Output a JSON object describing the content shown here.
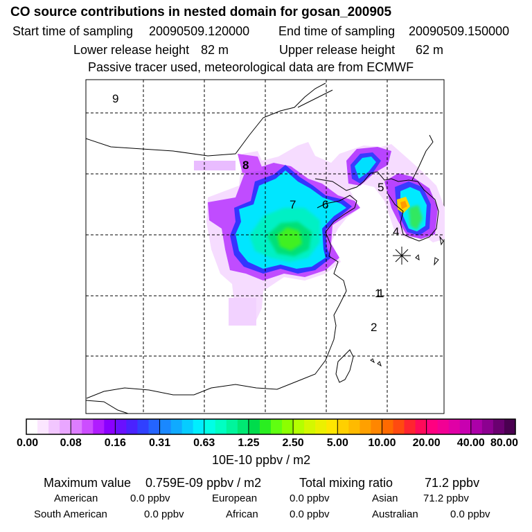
{
  "header": {
    "title": "CO  source contributions in nested domain for gosan_200905",
    "start_label": "Start time of sampling",
    "start_value": "20090509.120000",
    "end_label": "End time of sampling",
    "end_value": "20090509.150000",
    "lower_label": "Lower release height",
    "lower_value": "82 m",
    "upper_label": "Upper release height",
    "upper_value": "62 m",
    "note": "Passive tracer used, meteorological data are from ECMWF"
  },
  "chart_data": {
    "type": "heatmap",
    "region_labels": [
      "9",
      "8",
      "7",
      "6",
      "5",
      "4",
      "1",
      "2",
      "1"
    ],
    "colorbar": {
      "tick_labels": [
        "0.00",
        "0.08",
        "0.16",
        "0.31",
        "0.63",
        "1.25",
        "2.50",
        "5.00",
        "10.00",
        "20.00",
        "40.00",
        "80.00"
      ],
      "unit": "10E-10 ppbv / m2",
      "colors": [
        "#ffffff",
        "#fbe6ff",
        "#f2c6ff",
        "#e9a6ff",
        "#dd7dff",
        "#cc4dff",
        "#b01cff",
        "#8a00ff",
        "#6a10ff",
        "#4a22ff",
        "#3040ff",
        "#2464ff",
        "#1a88ff",
        "#10aaff",
        "#06ccff",
        "#00eeff",
        "#00ffe6",
        "#00ffc2",
        "#00f59c",
        "#00e873",
        "#00dc4c",
        "#2aee20",
        "#60ff10",
        "#8cff00",
        "#b4ff00",
        "#d4f800",
        "#ecf000",
        "#ffe600",
        "#ffd000",
        "#ffba00",
        "#ffa000",
        "#ff8600",
        "#ff6a00",
        "#ff4a10",
        "#ff2430",
        "#ff0a5a",
        "#ff0080",
        "#f20094",
        "#e000a6",
        "#c800b0",
        "#ac00a8",
        "#8c0090",
        "#6a0070",
        "#4a0050"
      ]
    },
    "max_value_label": "Maximum value",
    "max_value": "0.759E-09 ppbv / m2",
    "total_label": "Total mixing ratio",
    "total_value": "71.2 ppbv",
    "contributions": [
      {
        "region": "American",
        "value": "0.0 ppbv"
      },
      {
        "region": "European",
        "value": "0.0 ppbv"
      },
      {
        "region": "Asian",
        "value": "71.2 ppbv"
      },
      {
        "region": "South American",
        "value": "0.0 ppbv"
      },
      {
        "region": "African",
        "value": "0.0 ppbv"
      },
      {
        "region": "Australian",
        "value": "0.0 ppbv"
      }
    ]
  }
}
